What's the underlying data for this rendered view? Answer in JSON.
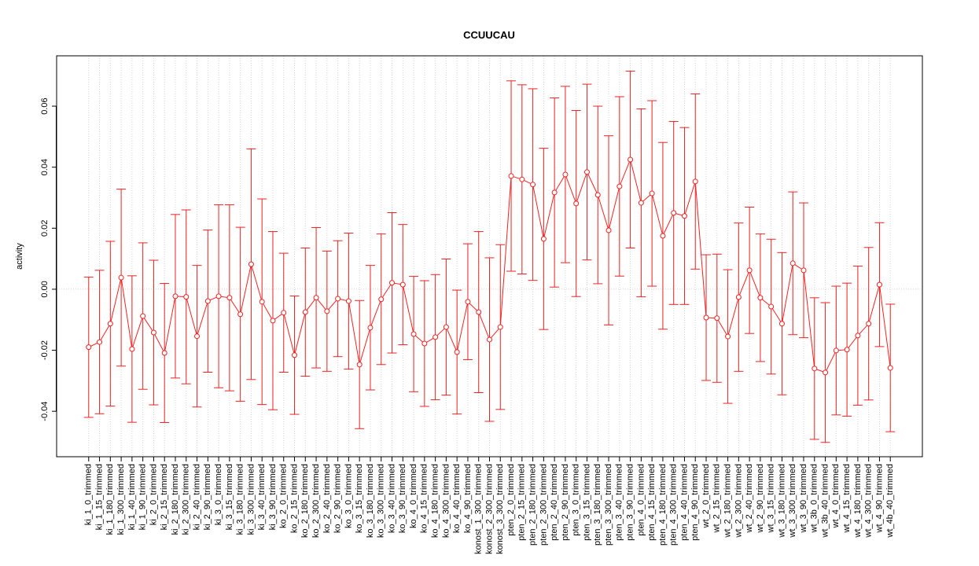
{
  "chart_data": {
    "type": "errorbar",
    "title": "CCUUCAU",
    "y_label": "activity",
    "categories": [
      "ki_1_0_trimmed",
      "ki_1_15_trimmed",
      "ki_1_180_trimmed",
      "ki_1_300_trimmed",
      "ki_1_40_trimmed",
      "ki_1_90_trimmed",
      "ki_2_0_trimmed",
      "ki_2_15_trimmed",
      "ki_2_180_trimmed",
      "ki_2_300_trimmed",
      "ki_2_40_trimmed",
      "ki_2_90_trimmed",
      "ki_3_0_trimmed",
      "ki_3_15_trimmed",
      "ki_3_180_trimmed",
      "ki_3_300_trimmed",
      "ki_3_40_trimmed",
      "ki_3_90_trimmed",
      "ko_2_0_trimmed",
      "ko_2_15_trimmed",
      "ko_2_180_trimmed",
      "ko_2_300_trimmed",
      "ko_2_40_trimmed",
      "ko_2_90_trimmed",
      "ko_3_0_trimmed",
      "ko_3_15_trimmed",
      "ko_3_180_trimmed",
      "ko_3_300_trimmed",
      "ko_3_40_trimmed",
      "ko_3_90_trimmed",
      "ko_4_0_trimmed",
      "ko_4_15_trimmed",
      "ko_4_180_trimmed",
      "ko_4_300_trimmed",
      "ko_4_40_trimmed",
      "ko_4_90_trimmed",
      "konost_1_300_trimmed",
      "konost_2_300_trimmed",
      "konost_3_300_trimmed",
      "pten_2_0_trimmed",
      "pten_2_15_trimmed",
      "pten_2_180_trimmed",
      "pten_2_300_trimmed",
      "pten_2_40_trimmed",
      "pten_2_90_trimmed",
      "pten_3_0_trimmed",
      "pten_3_15_trimmed",
      "pten_3_180_trimmed",
      "pten_3_300_trimmed",
      "pten_3_40_trimmed",
      "pten_3_90_trimmed",
      "pten_4_0_trimmed",
      "pten_4_15_trimmed",
      "pten_4_180_trimmed",
      "pten_4_300_trimmed",
      "pten_4_40_trimmed",
      "pten_4_90_trimmed",
      "wt_2_0_trimmed",
      "wt_2_15_trimmed",
      "wt_2_180_trimmed",
      "wt_2_300_trimmed",
      "wt_2_40_trimmed",
      "wt_2_90_trimmed",
      "wt_3_15_trimmed",
      "wt_3_180_trimmed",
      "wt_3_300_trimmed",
      "wt_3_90_trimmed",
      "wt_3b_0_trimmed",
      "wt_3b_40_trimmed",
      "wt_4_0_trimmed",
      "wt_4_15_trimmed",
      "wt_4_180_trimmed",
      "wt_4_300_trimmed",
      "wt_4_90_trimmed",
      "wt_4b_40_trimmed"
    ],
    "values": [
      -0.019,
      -0.0173,
      -0.0113,
      0.0038,
      -0.0196,
      -0.0088,
      -0.0142,
      -0.0209,
      -0.0023,
      -0.0025,
      -0.0154,
      -0.0039,
      -0.0023,
      -0.0028,
      -0.0082,
      0.0082,
      -0.0041,
      -0.0103,
      -0.0077,
      -0.0216,
      -0.0075,
      -0.0028,
      -0.0072,
      -0.0031,
      -0.0039,
      -0.0247,
      -0.0126,
      -0.0033,
      0.0021,
      0.0015,
      -0.0147,
      -0.0178,
      -0.0157,
      -0.0124,
      -0.0206,
      -0.0041,
      -0.0075,
      -0.0165,
      -0.0124,
      0.0371,
      0.036,
      0.0343,
      0.0165,
      0.0317,
      0.0376,
      0.0281,
      0.0384,
      0.0309,
      0.0193,
      0.0337,
      0.0425,
      0.0283,
      0.0314,
      0.0175,
      0.025,
      0.024,
      0.0353,
      -0.0093,
      -0.0095,
      -0.0155,
      -0.0026,
      0.0062,
      -0.0028,
      -0.0057,
      -0.0113,
      0.0085,
      0.0062,
      -0.026,
      -0.0273,
      -0.0201,
      -0.0198,
      -0.0152,
      -0.0113,
      0.0015,
      -0.0258
    ],
    "errors": [
      0.023,
      0.0235,
      0.027,
      0.029,
      0.024,
      0.024,
      0.0237,
      0.0228,
      0.0268,
      0.0285,
      0.0232,
      0.0233,
      0.03,
      0.0305,
      0.0285,
      0.0378,
      0.0337,
      0.0292,
      0.0195,
      0.0194,
      0.021,
      0.023,
      0.0197,
      0.019,
      0.0223,
      0.021,
      0.0204,
      0.0214,
      0.023,
      0.0197,
      0.0189,
      0.0206,
      0.0205,
      0.0223,
      0.0203,
      0.019,
      0.0264,
      0.0268,
      0.027,
      0.0312,
      0.031,
      0.0314,
      0.0297,
      0.031,
      0.0289,
      0.0305,
      0.0288,
      0.0291,
      0.031,
      0.0294,
      0.029,
      0.0308,
      0.0304,
      0.0306,
      0.03,
      0.029,
      0.0287,
      0.0206,
      0.021,
      0.0219,
      0.0243,
      0.0207,
      0.0209,
      0.0221,
      0.0233,
      0.0234,
      0.0221,
      0.0232,
      0.0229,
      0.0211,
      0.0218,
      0.0228,
      0.025,
      0.0203,
      0.0209
    ],
    "color": "#ee2222",
    "ylim": [
      -0.0549,
      0.0765
    ],
    "yticks": [
      -0.04,
      -0.02,
      {
        "value": 0,
        "label": "0.00"
      },
      0.02,
      0.04,
      0.06
    ],
    "reference_line": 0,
    "grid": true
  }
}
